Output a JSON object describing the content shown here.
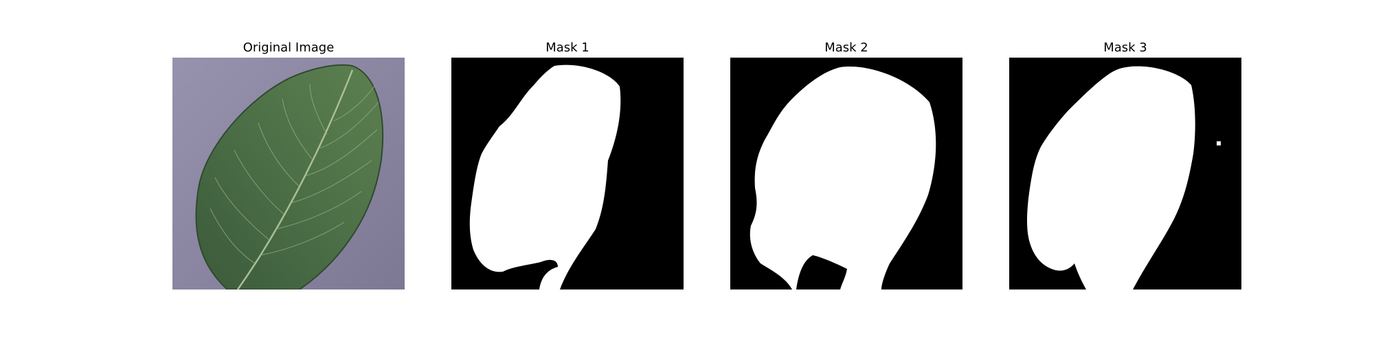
{
  "figure": {
    "panels": [
      {
        "title": "Original Image",
        "kind": "photo",
        "icon": "leaf-photo"
      },
      {
        "title": "Mask 1",
        "kind": "mask",
        "icon": "leaf-mask"
      },
      {
        "title": "Mask 2",
        "kind": "mask",
        "icon": "leaf-mask"
      },
      {
        "title": "Mask 3",
        "kind": "mask",
        "icon": "leaf-mask"
      }
    ],
    "colors": {
      "photo_background": "#8a86a2",
      "leaf": "#4a6b45",
      "leaf_vein": "#a9bf93",
      "mask_background": "#000000",
      "mask_foreground": "#ffffff"
    }
  }
}
